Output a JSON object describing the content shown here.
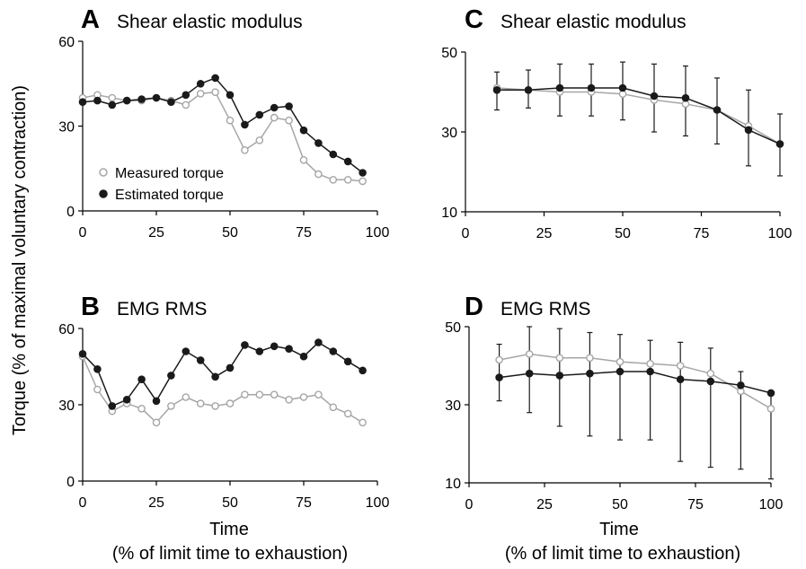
{
  "figure": {
    "ylabel": "Torque (% of maximal voluntary contraction)",
    "xlabel_left": "Time",
    "xlabel_left_sub": "(% of limit time to exhaustion)",
    "xlabel_right": "Time",
    "xlabel_right_sub": "(% of limit time to exhaustion)"
  },
  "colors": {
    "measured": "#a6a6a6",
    "estimated": "#1a1a1a"
  },
  "chart_data": [
    {
      "id": "A",
      "type": "line",
      "letter": "A",
      "title": "Shear elastic modulus",
      "xlim": [
        0,
        100
      ],
      "ylim": [
        0,
        60
      ],
      "xticks": [
        0,
        25,
        50,
        75,
        100
      ],
      "yticks": [
        0,
        30,
        60
      ],
      "legend": {
        "placement": "bottom-left",
        "entries": [
          "Measured torque",
          "Estimated torque"
        ]
      },
      "x": [
        0,
        5,
        10,
        15,
        20,
        25,
        30,
        35,
        40,
        45,
        50,
        55,
        60,
        65,
        70,
        75,
        80,
        85,
        90,
        95
      ],
      "series": [
        {
          "name": "Measured torque",
          "values": [
            40,
            41,
            40,
            39,
            39,
            40,
            39,
            37.5,
            41.5,
            42,
            32,
            21.5,
            25,
            33,
            32,
            18,
            13,
            11,
            11,
            10.5
          ]
        },
        {
          "name": "Estimated torque",
          "values": [
            38.5,
            39,
            37.5,
            39,
            39.5,
            40,
            38.5,
            41,
            45,
            47,
            41,
            30.5,
            34,
            36.5,
            37,
            28.5,
            24,
            20,
            17.5,
            13.5
          ]
        }
      ]
    },
    {
      "id": "B",
      "type": "line",
      "letter": "B",
      "title": "EMG RMS",
      "xlim": [
        0,
        100
      ],
      "ylim": [
        0,
        60
      ],
      "xticks": [
        0,
        25,
        50,
        75,
        100
      ],
      "yticks": [
        0,
        30,
        60
      ],
      "x": [
        0,
        5,
        10,
        15,
        20,
        25,
        30,
        35,
        40,
        45,
        50,
        55,
        60,
        65,
        70,
        75,
        80,
        85,
        90,
        95
      ],
      "series": [
        {
          "name": "Measured torque",
          "values": [
            49,
            36,
            27.5,
            30.5,
            28.5,
            23,
            29.5,
            33,
            30.5,
            29.5,
            30.5,
            34,
            34,
            34,
            32,
            33,
            34,
            29,
            26.5,
            23
          ]
        },
        {
          "name": "Estimated torque",
          "values": [
            50,
            44,
            29.5,
            32,
            40,
            31.5,
            41.5,
            51,
            47.5,
            41,
            44.5,
            53.5,
            51,
            53,
            52,
            49,
            54.5,
            51,
            47,
            43.5
          ]
        }
      ]
    },
    {
      "id": "C",
      "type": "line",
      "letter": "C",
      "title": "Shear elastic modulus",
      "xlim": [
        0,
        100
      ],
      "ylim": [
        10,
        50
      ],
      "xticks": [
        0,
        25,
        50,
        75,
        100
      ],
      "yticks": [
        10,
        30,
        50
      ],
      "x": [
        10,
        20,
        30,
        40,
        50,
        60,
        70,
        80,
        90,
        100
      ],
      "series": [
        {
          "name": "Measured torque",
          "values": [
            41,
            40.5,
            40,
            40,
            39.5,
            38,
            37,
            35.5,
            31.5,
            27
          ]
        },
        {
          "name": "Estimated torque",
          "values": [
            40.5,
            40.5,
            41,
            41,
            41,
            39,
            38.5,
            35.5,
            30.5,
            27
          ]
        }
      ],
      "error_bars": {
        "series": "Estimated torque",
        "upper": [
          45,
          45.5,
          47,
          47,
          47.5,
          47,
          46.5,
          43.5,
          40.5,
          34.5
        ],
        "lower": [
          35.5,
          36,
          34,
          34,
          33,
          30,
          29,
          27,
          21.5,
          19
        ]
      }
    },
    {
      "id": "D",
      "type": "line",
      "letter": "D",
      "title": "EMG RMS",
      "xlim": [
        0,
        100
      ],
      "ylim": [
        10,
        50
      ],
      "xticks": [
        0,
        25,
        50,
        75,
        100
      ],
      "yticks": [
        10,
        30,
        50
      ],
      "x": [
        10,
        20,
        30,
        40,
        50,
        60,
        70,
        80,
        90,
        100
      ],
      "series": [
        {
          "name": "Measured torque",
          "values": [
            41.5,
            43,
            42,
            42,
            41,
            40.5,
            40,
            38,
            33.5,
            29
          ]
        },
        {
          "name": "Estimated torque",
          "values": [
            37,
            38,
            37.5,
            38,
            38.5,
            38.5,
            36.5,
            36,
            35,
            33
          ]
        }
      ],
      "error_bars": {
        "series": "Estimated torque",
        "upper": [
          45.5,
          50,
          49.5,
          48.5,
          48,
          46.5,
          46,
          44.5,
          38.5,
          33
        ],
        "lower": [
          31,
          28,
          24.5,
          22,
          21,
          21,
          15.5,
          14,
          13.5,
          11
        ]
      }
    }
  ]
}
